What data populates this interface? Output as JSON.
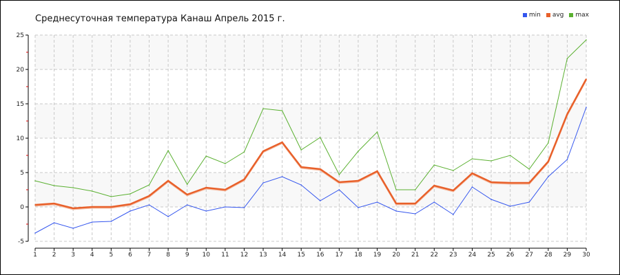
{
  "chart_data": {
    "type": "line",
    "title": "Среднесуточная температура Канаш  Апрель 2015 г.",
    "xlabel": "",
    "ylabel": "",
    "x": [
      1,
      2,
      3,
      4,
      5,
      6,
      7,
      8,
      9,
      10,
      11,
      12,
      13,
      14,
      15,
      16,
      17,
      18,
      19,
      20,
      21,
      22,
      23,
      24,
      25,
      26,
      27,
      28,
      29,
      30
    ],
    "ylim": [
      -5,
      25
    ],
    "yticks": [
      -5,
      0,
      5,
      10,
      15,
      20,
      25
    ],
    "grid": true,
    "legend_position": "top-right",
    "series": [
      {
        "name": "min",
        "color": "#3355ee",
        "values": [
          -3.8,
          -2.3,
          -3.1,
          -2.2,
          -2.1,
          -0.6,
          0.3,
          -1.4,
          0.3,
          -0.6,
          0.0,
          -0.1,
          3.5,
          4.4,
          3.2,
          0.9,
          2.5,
          -0.1,
          0.7,
          -0.6,
          -1.0,
          0.7,
          -1.1,
          2.9,
          1.1,
          0.1,
          0.7,
          4.4,
          6.9,
          14.5
        ]
      },
      {
        "name": "avg",
        "color": "#e8602a",
        "values": [
          0.3,
          0.5,
          -0.2,
          0.0,
          0.0,
          0.4,
          1.6,
          3.8,
          1.8,
          2.8,
          2.5,
          4.0,
          8.1,
          9.4,
          5.8,
          5.5,
          3.6,
          3.8,
          5.2,
          0.5,
          0.5,
          3.1,
          2.4,
          4.9,
          3.6,
          3.5,
          3.5,
          6.6,
          13.5,
          18.6
        ]
      },
      {
        "name": "max",
        "color": "#5ab030",
        "values": [
          3.8,
          3.1,
          2.8,
          2.3,
          1.5,
          1.9,
          3.2,
          8.2,
          3.3,
          7.4,
          6.3,
          8.0,
          14.3,
          14.0,
          8.3,
          10.1,
          4.7,
          8.1,
          10.9,
          2.5,
          2.5,
          6.1,
          5.3,
          7.0,
          6.7,
          7.5,
          5.5,
          9.3,
          21.6,
          24.3
        ]
      }
    ]
  }
}
